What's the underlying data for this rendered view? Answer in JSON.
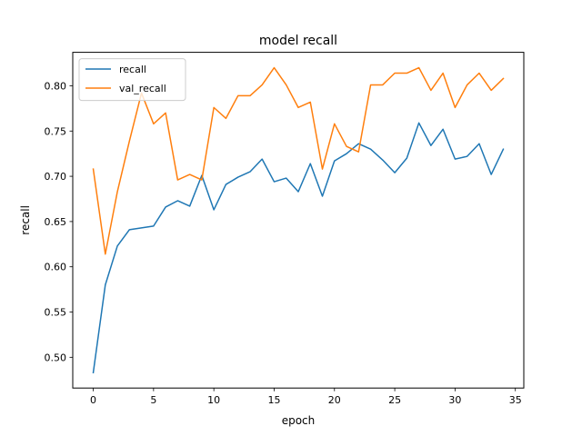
{
  "chart_data": {
    "type": "line",
    "title": "model recall",
    "xlabel": "epoch",
    "ylabel": "recall",
    "xlim": [
      -1.7,
      35.7
    ],
    "ylim": [
      0.466,
      0.837
    ],
    "xticks": [
      0,
      5,
      10,
      15,
      20,
      25,
      30,
      35
    ],
    "xtick_labels": [
      "0",
      "5",
      "10",
      "15",
      "20",
      "25",
      "30",
      "35"
    ],
    "yticks": [
      0.5,
      0.55,
      0.6,
      0.65,
      0.7,
      0.75,
      0.8
    ],
    "ytick_labels": [
      "0.50",
      "0.55",
      "0.60",
      "0.65",
      "0.70",
      "0.75",
      "0.80"
    ],
    "grid": false,
    "legend_position": "top-left",
    "x": [
      0,
      1,
      2,
      3,
      4,
      5,
      6,
      7,
      8,
      9,
      10,
      11,
      12,
      13,
      14,
      15,
      16,
      17,
      18,
      19,
      20,
      21,
      22,
      23,
      24,
      25,
      26,
      27,
      28,
      29,
      30,
      31,
      32,
      33,
      34
    ],
    "series": [
      {
        "name": "recall",
        "color": "#1f77b4",
        "values": [
          0.483,
          0.58,
          0.623,
          0.641,
          0.643,
          0.645,
          0.666,
          0.673,
          0.667,
          0.701,
          0.663,
          0.691,
          0.699,
          0.705,
          0.719,
          0.694,
          0.698,
          0.683,
          0.714,
          0.678,
          0.717,
          0.725,
          0.736,
          0.73,
          0.718,
          0.704,
          0.72,
          0.759,
          0.734,
          0.752,
          0.719,
          0.722,
          0.736,
          0.702,
          0.73
        ]
      },
      {
        "name": "val_recall",
        "color": "#ff7f0e",
        "values": [
          0.708,
          0.614,
          0.683,
          0.739,
          0.792,
          0.758,
          0.77,
          0.696,
          0.702,
          0.696,
          0.776,
          0.764,
          0.789,
          0.789,
          0.801,
          0.82,
          0.801,
          0.776,
          0.782,
          0.708,
          0.758,
          0.733,
          0.727,
          0.801,
          0.801,
          0.814,
          0.814,
          0.82,
          0.795,
          0.814,
          0.776,
          0.801,
          0.814,
          0.795,
          0.808
        ]
      }
    ]
  }
}
